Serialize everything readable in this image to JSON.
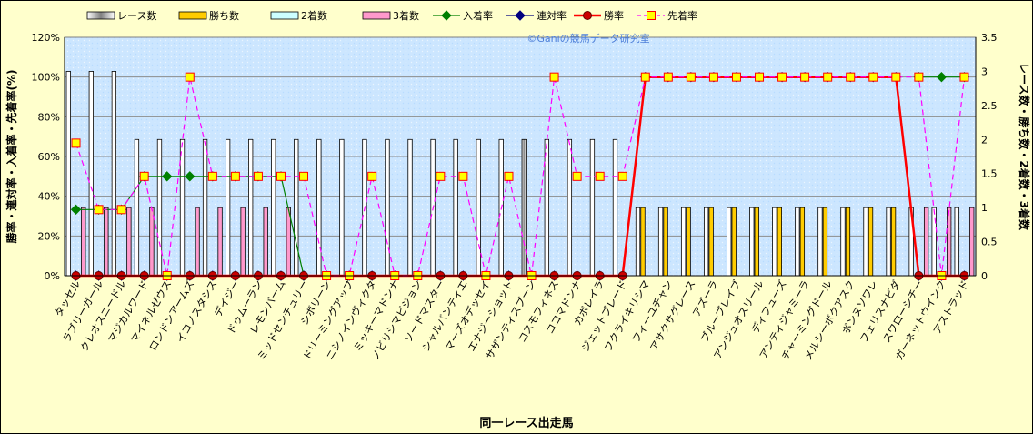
{
  "chart_data": {
    "type": "bar",
    "title": "",
    "watermark": "©Ganiの競馬データ研究室",
    "xlabel": "同一レース出走馬",
    "ylabel_left": "勝率・連対率・入着率・先着率(%)",
    "ylabel_right": "レース数・勝ち数・2着数・3着数",
    "ylim_left": [
      0,
      120
    ],
    "ylim_right": [
      0,
      3.5
    ],
    "yticks_left": [
      "0%",
      "20%",
      "40%",
      "60%",
      "80%",
      "100%",
      "120%"
    ],
    "yticks_right": [
      "0",
      "0.5",
      "1",
      "1.5",
      "2",
      "2.5",
      "3",
      "3.5"
    ],
    "grid": true,
    "legend_position": "top",
    "categories": [
      "タッセル",
      "ラブリーガール",
      "クレオスニードル",
      "マジカルワード",
      "マイネルゼウス",
      "ロンドンアームズ",
      "イコノスタシス",
      "デイジー",
      "ドゥムーラン",
      "レモンバーム",
      "ミッドセンチュリー",
      "シボリーン",
      "ドリーミングアップ",
      "ニシノインヴィクタ",
      "ミッキーマドンナ",
      "ノビリシマビジョン",
      "ソードマスター",
      "シャルバンティエ",
      "マーズオデッセイ",
      "エナジーショット",
      "サザンティスブーン",
      "コスモフィネス",
      "ココマドンナ",
      "カボレイラ",
      "ジェットブレード",
      "フクライキリシマ",
      "フィーユチャン",
      "アサクサグレース",
      "アズーラ",
      "ブルーブレイブ",
      "アンジュオスリール",
      "ディフューズ",
      "アンティジャミーラ",
      "チャーミングドール",
      "メルシーボクアスク",
      "ボンヌソワレ",
      "フェリスナビダ",
      "スワローシチー",
      "ガーネットウインク",
      "アストラッド"
    ],
    "series": [
      {
        "name": "レース数",
        "axis": "right",
        "color": "#ffffff",
        "values": [
          3,
          3,
          3,
          2,
          2,
          2,
          2,
          2,
          2,
          2,
          2,
          2,
          2,
          2,
          2,
          2,
          2,
          2,
          2,
          2,
          2,
          2,
          2,
          2,
          2,
          1,
          1,
          1,
          1,
          1,
          1,
          1,
          1,
          1,
          1,
          1,
          1,
          1,
          1,
          1
        ]
      },
      {
        "name": "勝ち数",
        "axis": "right",
        "color": "#ffcc00",
        "values": [
          0,
          0,
          0,
          0,
          0,
          0,
          0,
          0,
          0,
          0,
          0,
          0,
          0,
          0,
          0,
          0,
          0,
          0,
          0,
          0,
          0,
          0,
          0,
          0,
          0,
          1,
          1,
          1,
          1,
          1,
          1,
          1,
          1,
          1,
          1,
          1,
          1,
          0,
          0,
          0
        ]
      },
      {
        "name": "2着数",
        "axis": "right",
        "color": "#ccffff",
        "values": [
          0,
          0,
          0,
          0,
          0,
          0,
          0,
          0,
          0,
          0,
          0,
          0,
          0,
          0,
          0,
          0,
          0,
          0,
          0,
          0,
          0,
          0,
          0,
          0,
          0,
          0,
          0,
          0,
          0,
          0,
          0,
          0,
          0,
          0,
          0,
          0,
          0,
          0,
          0,
          0
        ]
      },
      {
        "name": "3着数",
        "axis": "right",
        "color": "#ff99cc",
        "values": [
          1,
          1,
          1,
          1,
          0,
          1,
          1,
          1,
          1,
          1,
          0,
          0,
          0,
          0,
          0,
          0,
          0,
          0,
          0,
          0,
          0,
          0,
          0,
          0,
          0,
          0,
          0,
          0,
          0,
          0,
          0,
          0,
          0,
          0,
          0,
          0,
          0,
          1,
          1,
          1
        ]
      },
      {
        "name": "入着率",
        "axis": "left",
        "color": "#008000",
        "values": [
          33.3,
          33.3,
          33.3,
          50,
          50,
          50,
          50,
          50,
          50,
          50,
          0,
          null,
          null,
          null,
          null,
          null,
          null,
          null,
          null,
          null,
          null,
          null,
          null,
          null,
          null,
          null,
          null,
          null,
          null,
          null,
          null,
          null,
          null,
          null,
          null,
          null,
          null,
          100,
          100,
          100
        ]
      },
      {
        "name": "連対率",
        "axis": "left",
        "color": "#000080",
        "values": [
          0,
          0,
          0,
          0,
          0,
          0,
          0,
          0,
          0,
          0,
          0,
          0,
          0,
          0,
          0,
          0,
          0,
          0,
          0,
          0,
          0,
          0,
          0,
          0,
          0,
          100,
          100,
          100,
          100,
          100,
          100,
          100,
          100,
          100,
          100,
          100,
          100,
          0,
          0,
          0
        ]
      },
      {
        "name": "勝率",
        "axis": "left",
        "color": "#ff0000",
        "values": [
          0,
          0,
          0,
          0,
          0,
          0,
          0,
          0,
          0,
          0,
          0,
          0,
          0,
          0,
          0,
          0,
          0,
          0,
          0,
          0,
          0,
          0,
          0,
          0,
          0,
          100,
          100,
          100,
          100,
          100,
          100,
          100,
          100,
          100,
          100,
          100,
          100,
          0,
          0,
          0
        ]
      },
      {
        "name": "先着率",
        "axis": "left",
        "color": "#ff00ff",
        "values": [
          66.7,
          33.3,
          33.3,
          50,
          0,
          100,
          50,
          50,
          50,
          50,
          50,
          0,
          0,
          50,
          0,
          0,
          50,
          50,
          0,
          50,
          0,
          100,
          50,
          50,
          50,
          100,
          100,
          100,
          100,
          100,
          100,
          100,
          100,
          100,
          100,
          100,
          100,
          100,
          0,
          100
        ]
      }
    ]
  }
}
